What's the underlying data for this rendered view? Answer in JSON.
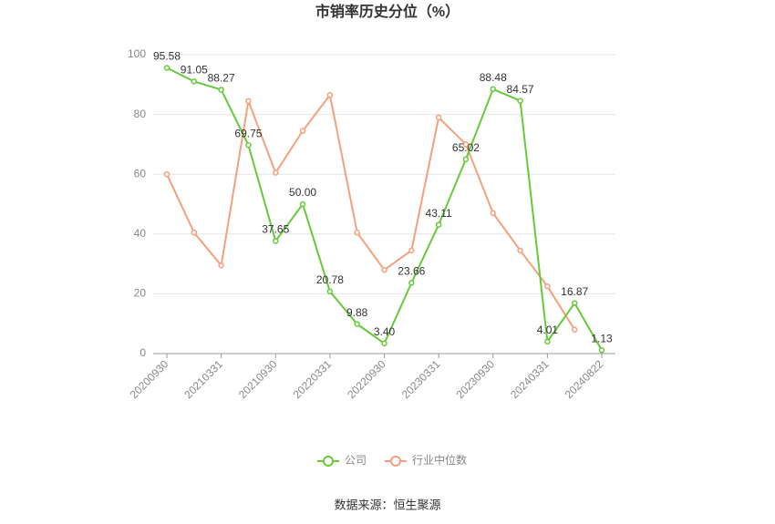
{
  "chart_data": {
    "type": "line",
    "title": "市销率历史分位（%）",
    "categories": [
      "20200930",
      null,
      "20210331",
      null,
      "20210930",
      null,
      "20220331",
      null,
      "20220930",
      null,
      "20230331",
      null,
      "20230930",
      null,
      "20240331",
      null,
      "20240822"
    ],
    "series": [
      {
        "name": "公司",
        "color": "#66c93a",
        "values": [
          95.58,
          91.05,
          88.27,
          69.75,
          37.65,
          50.0,
          20.78,
          9.88,
          3.4,
          23.66,
          43.11,
          65.02,
          88.48,
          84.57,
          4.01,
          16.87,
          1.13
        ],
        "value_labels": [
          "95.58",
          "91.05",
          "88.27",
          "69.75",
          "37.65",
          "50.00",
          "20.78",
          "9.88",
          "3.40",
          "23.66",
          "43.11",
          "65.02",
          "88.48",
          "84.57",
          "4.01",
          "16.87",
          "1.13"
        ]
      },
      {
        "name": "行业中位数",
        "color": "#f4a07b",
        "values": [
          60,
          40.5,
          29.5,
          84.5,
          60.5,
          74.5,
          86.5,
          40.5,
          28,
          34.5,
          79,
          70,
          47,
          34.5,
          22.5,
          8,
          null
        ]
      }
    ],
    "ylim": [
      0,
      100
    ],
    "yticks": [
      0,
      20,
      40,
      60,
      80,
      100
    ],
    "grid": true,
    "legend": "bottom",
    "source": "数据来源：恒生聚源"
  }
}
